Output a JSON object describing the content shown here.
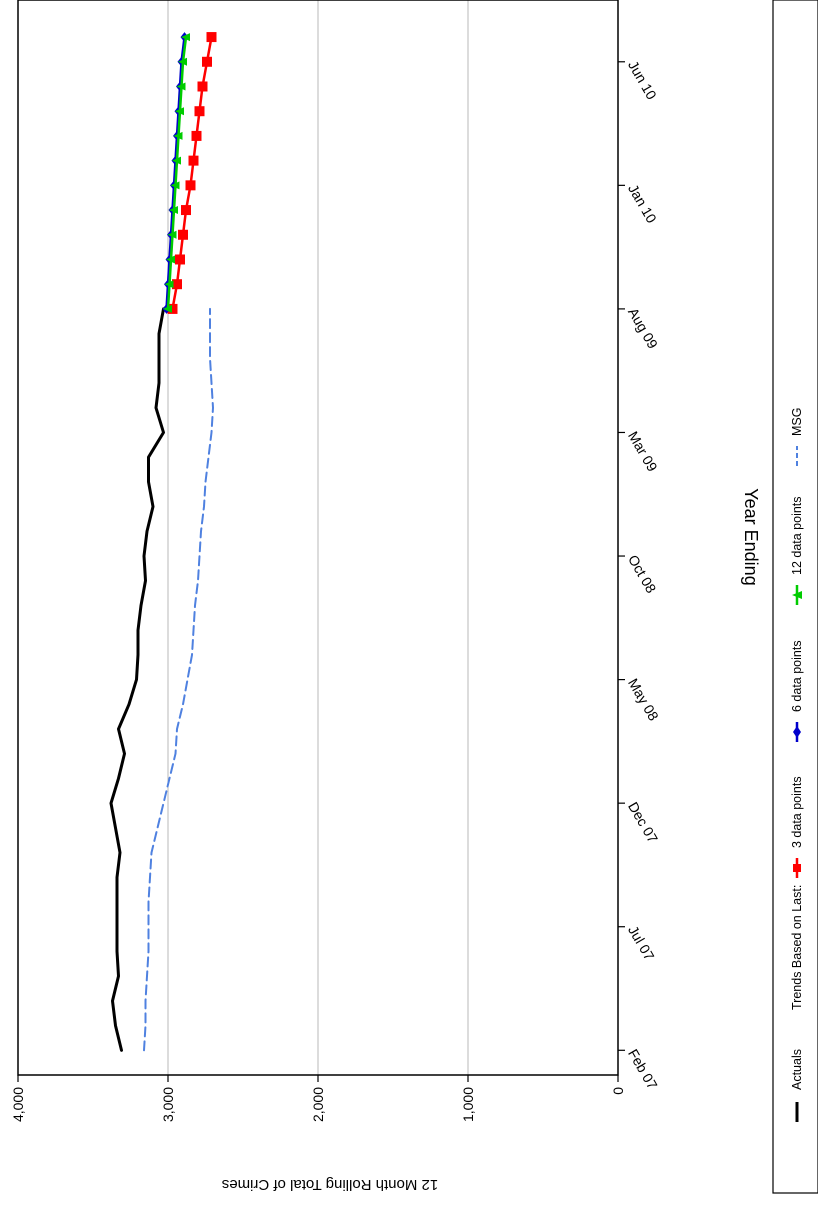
{
  "chart_data": {
    "type": "line",
    "orientation": "rotated-90-clockwise",
    "xlabel": "Year Ending",
    "ylabel": "12 Month Rolling Total of Crimes",
    "ylim": [
      0,
      4000
    ],
    "y_ticks": [
      0,
      1000,
      2000,
      3000,
      4000
    ],
    "y_tick_labels": [
      "0",
      "1,000",
      "2,000",
      "3,000",
      "4,000"
    ],
    "x_tick_labels": [
      "Feb 07",
      "Jul 07",
      "Dec 07",
      "May 08",
      "Oct 08",
      "Mar 09",
      "Aug 09",
      "Jan 10",
      "Jun 10"
    ],
    "x_ticks_index": [
      0,
      5,
      10,
      15,
      20,
      25,
      30,
      35,
      40
    ],
    "x_range_index": [
      -1,
      42.5
    ],
    "grid": "horizontal (value axis)",
    "legend_position": "right",
    "legend": {
      "actuals": "Actuals",
      "trends_prefix": "Trends Based on Last:",
      "trend3": "3 data points",
      "trend6": "6 data points",
      "trend12": "12 data points",
      "msg": "MSG"
    },
    "series": [
      {
        "name": "Actuals",
        "color": "#000000",
        "style": "solid",
        "x": [
          0,
          1,
          2,
          3,
          4,
          5,
          6,
          7,
          8,
          9,
          10,
          11,
          12,
          13,
          14,
          15,
          16,
          17,
          18,
          19,
          20,
          21,
          22,
          23,
          24,
          25,
          26,
          27,
          28,
          29,
          30
        ],
        "values": [
          3310,
          3350,
          3370,
          3330,
          3340,
          3340,
          3340,
          3340,
          3320,
          3350,
          3380,
          3330,
          3290,
          3330,
          3260,
          3210,
          3200,
          3200,
          3180,
          3150,
          3160,
          3140,
          3100,
          3130,
          3130,
          3030,
          3080,
          3060,
          3060,
          3060,
          3030
        ]
      },
      {
        "name": "MSG",
        "color": "#4f81e0",
        "style": "dashed",
        "x": [
          0,
          1,
          2,
          3,
          4,
          5,
          6,
          7,
          8,
          9,
          10,
          11,
          12,
          13,
          14,
          15,
          16,
          17,
          18,
          19,
          20,
          21,
          22,
          23,
          24,
          25,
          26,
          27,
          28,
          29,
          30
        ],
        "values": [
          3160,
          3150,
          3150,
          3140,
          3130,
          3130,
          3130,
          3120,
          3110,
          3070,
          3030,
          2990,
          2950,
          2940,
          2900,
          2870,
          2840,
          2830,
          2820,
          2800,
          2790,
          2780,
          2760,
          2750,
          2730,
          2710,
          2700,
          2710,
          2720,
          2720,
          2720
        ]
      },
      {
        "name": "3 data points",
        "color": "#ff0000",
        "marker": "square",
        "x": [
          30,
          31,
          32,
          33,
          34,
          35,
          36,
          37,
          38,
          39,
          40,
          41
        ],
        "values": [
          2970,
          2940,
          2920,
          2900,
          2880,
          2850,
          2830,
          2810,
          2790,
          2770,
          2740,
          2710
        ]
      },
      {
        "name": "6 data points",
        "color": "#0000cc",
        "marker": "diamond",
        "x": [
          30,
          31,
          32,
          33,
          34,
          35,
          36,
          37,
          38,
          39,
          40,
          41
        ],
        "values": [
          3010,
          3000,
          2990,
          2980,
          2970,
          2960,
          2950,
          2940,
          2930,
          2920,
          2910,
          2890
        ]
      },
      {
        "name": "12 data points",
        "color": "#00cc00",
        "marker": "triangle",
        "x": [
          30,
          31,
          32,
          33,
          34,
          35,
          36,
          37,
          38,
          39,
          40,
          41
        ],
        "values": [
          3000,
          2990,
          2980,
          2970,
          2960,
          2950,
          2940,
          2930,
          2920,
          2910,
          2900,
          2880
        ]
      }
    ]
  }
}
